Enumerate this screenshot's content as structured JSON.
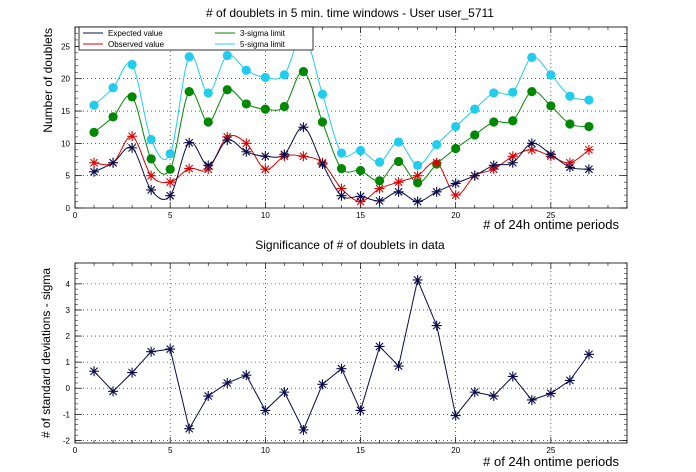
{
  "chart_data": [
    {
      "type": "line",
      "title": "# of doublets in 5 min. time windows - User user_5711",
      "xlabel": "# of 24h ontime periods",
      "ylabel": "Number of doublets",
      "xlim": [
        0,
        29
      ],
      "ylim": [
        0,
        28
      ],
      "xticks": [
        0,
        5,
        10,
        15,
        20,
        25
      ],
      "yticks": [
        0,
        5,
        10,
        15,
        20,
        25
      ],
      "grid": true,
      "legend_position": "top-left",
      "x": [
        1,
        2,
        3,
        4,
        5,
        6,
        7,
        8,
        9,
        10,
        11,
        12,
        13,
        14,
        15,
        16,
        17,
        18,
        19,
        20,
        21,
        22,
        23,
        24,
        25,
        26,
        27
      ],
      "series": [
        {
          "name": "Expected value",
          "color": "#0b0b4a",
          "marker": "star",
          "values": [
            5.6,
            7.0,
            9.3,
            2.8,
            1.9,
            10.1,
            6.6,
            10.5,
            8.7,
            8.0,
            8.3,
            12.5,
            6.8,
            1.9,
            1.8,
            1.1,
            2.5,
            1.0,
            2.5,
            3.8,
            5.0,
            6.6,
            7.0,
            10.0,
            8.3,
            6.3,
            6.0
          ]
        },
        {
          "name": "Observed value",
          "color": "#dd0000",
          "marker": "star",
          "values": [
            7.0,
            7.0,
            11.1,
            5.0,
            4.0,
            6.1,
            6.0,
            11.0,
            10.0,
            6.0,
            8.0,
            8.0,
            7.0,
            3.0,
            1.0,
            3.0,
            4.0,
            5.0,
            7.0,
            2.0,
            5.0,
            6.0,
            8.0,
            9.0,
            8.0,
            7.0,
            9.0
          ]
        },
        {
          "name": "3-sigma limit",
          "color": "#008800",
          "marker": "circle",
          "values": [
            11.7,
            14.1,
            17.2,
            7.6,
            6.0,
            18.0,
            13.3,
            18.3,
            16.1,
            15.3,
            15.7,
            21.1,
            13.3,
            6.1,
            5.8,
            4.2,
            7.2,
            3.9,
            6.8,
            9.2,
            11.3,
            13.3,
            13.5,
            18.0,
            15.8,
            13.0,
            12.6
          ]
        },
        {
          "name": "5-sigma limit",
          "color": "#22ccee",
          "marker": "circle",
          "values": [
            15.9,
            18.6,
            22.2,
            10.6,
            8.4,
            23.4,
            17.8,
            23.6,
            21.3,
            20.2,
            20.6,
            26.8,
            17.6,
            8.5,
            8.9,
            7.1,
            10.2,
            6.6,
            9.8,
            12.6,
            15.3,
            17.8,
            17.9,
            23.3,
            20.6,
            17.3,
            16.7
          ]
        }
      ]
    },
    {
      "type": "line",
      "title": "Significance of # of doublets in data",
      "xlabel": "# of 24h ontime periods",
      "ylabel": "# of standard deviations - sigma",
      "xlim": [
        0,
        29
      ],
      "ylim": [
        -2.1,
        4.8
      ],
      "xticks": [
        0,
        5,
        10,
        15,
        20,
        25
      ],
      "yticks": [
        -2,
        -1,
        0,
        1,
        2,
        3,
        4
      ],
      "grid": true,
      "x": [
        1,
        2,
        3,
        4,
        5,
        6,
        7,
        8,
        9,
        10,
        11,
        12,
        13,
        14,
        15,
        16,
        17,
        18,
        19,
        20,
        21,
        22,
        23,
        24,
        25,
        26,
        27
      ],
      "series": [
        {
          "color": "#0b0b4a",
          "marker": "star",
          "values": [
            0.65,
            -0.12,
            0.6,
            1.4,
            1.5,
            -1.55,
            -0.3,
            0.2,
            0.5,
            -0.85,
            -0.15,
            -1.6,
            0.15,
            0.75,
            -0.85,
            1.6,
            0.85,
            4.15,
            2.4,
            -1.05,
            -0.15,
            -0.3,
            0.45,
            -0.45,
            -0.2,
            0.3,
            1.3
          ]
        }
      ]
    }
  ]
}
